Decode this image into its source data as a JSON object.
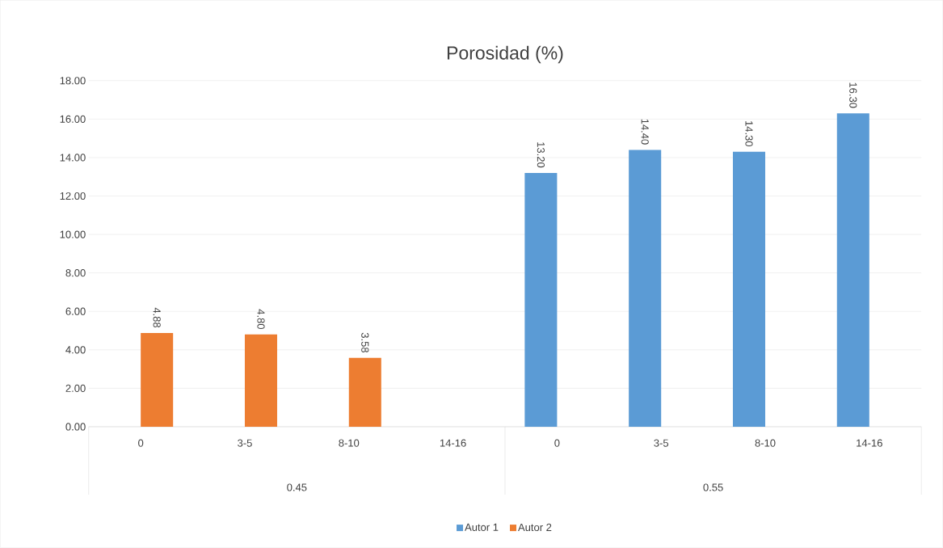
{
  "chart_data": {
    "type": "bar",
    "title": "Porosidad (%)",
    "categories": [
      "0",
      "3-5",
      "8-10",
      "14-16",
      "0",
      "3-5",
      "8-10",
      "14-16"
    ],
    "annotations": [
      "0.45",
      "0.55"
    ],
    "series": [
      {
        "name": "Autor 1",
        "color": "#5b9bd5",
        "values": [
          null,
          null,
          null,
          null,
          13.2,
          14.4,
          14.3,
          16.3
        ],
        "value_labels": [
          null,
          null,
          null,
          null,
          "13.20",
          "14.40",
          "14.30",
          "16.30"
        ]
      },
      {
        "name": "Autor 2",
        "color": "#ed7d31",
        "values": [
          4.88,
          4.8,
          3.58,
          null,
          null,
          null,
          null,
          null
        ],
        "value_labels": [
          "4.88",
          "4.80",
          "3.58",
          null,
          null,
          null,
          null,
          null
        ]
      }
    ],
    "ylim": [
      0,
      18
    ],
    "yticks": [
      {
        "value": 0,
        "label": "0.00"
      },
      {
        "value": 2,
        "label": "2.00"
      },
      {
        "value": 4,
        "label": "4.00"
      },
      {
        "value": 6,
        "label": "6.00"
      },
      {
        "value": 8,
        "label": "8.00"
      },
      {
        "value": 10,
        "label": "10.00"
      },
      {
        "value": 12,
        "label": "12.00"
      },
      {
        "value": 14,
        "label": "14.00"
      },
      {
        "value": 16,
        "label": "16.00"
      },
      {
        "value": 18,
        "label": "18.00"
      }
    ],
    "grid": "y",
    "legend": "bottom"
  }
}
